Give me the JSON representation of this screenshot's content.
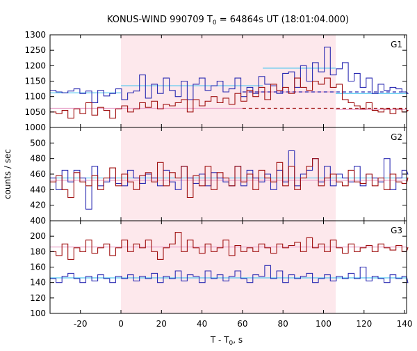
{
  "figure": {
    "title_main": "KONUS-WIND 990709 T",
    "title_sub": "0",
    "title_rest": " = 64864s UT (18:01:04.000)",
    "ylabel": "counts / sec",
    "xlabel_main": "T - T",
    "xlabel_sub": "0",
    "xlabel_rest": ", s"
  },
  "colors": {
    "blue": "#2b2bb2",
    "red": "#a01010",
    "light_blue": "#55c7f0",
    "pink": "#e8a0c8",
    "shade": "#fde8ec"
  },
  "chart_data": {
    "type": "line",
    "xlim": [
      -35,
      141
    ],
    "shaded_interval": [
      0,
      106
    ],
    "x_ticks": [
      -20,
      0,
      20,
      40,
      60,
      80,
      100,
      120,
      140
    ],
    "bin_width": 2.944,
    "panels": [
      {
        "label": "G1",
        "ylim": [
          1000,
          1300
        ],
        "y_ticks": [
          1000,
          1050,
          1100,
          1150,
          1200,
          1250,
          1300
        ],
        "series": [
          {
            "color": "blue",
            "values": [
              1120,
              1115,
              1112,
              1118,
              1125,
              1110,
              1118,
              1080,
              1120,
              1102,
              1110,
              1125,
              1090,
              1112,
              1118,
              1170,
              1095,
              1140,
              1110,
              1160,
              1120,
              1100,
              1150,
              1090,
              1140,
              1160,
              1120,
              1135,
              1150,
              1115,
              1125,
              1160,
              1100,
              1130,
              1110,
              1165,
              1140,
              1135,
              1110,
              1175,
              1180,
              1130,
              1200,
              1150,
              1210,
              1180,
              1260,
              1170,
              1190,
              1210,
              1150,
              1175,
              1130,
              1160,
              1110,
              1140,
              1120,
              1130,
              1125,
              1115,
              1110
            ]
          },
          {
            "color": "red",
            "values": [
              1050,
              1045,
              1055,
              1030,
              1060,
              1045,
              1080,
              1040,
              1065,
              1055,
              1030,
              1060,
              1070,
              1050,
              1060,
              1080,
              1065,
              1085,
              1060,
              1075,
              1070,
              1080,
              1090,
              1050,
              1090,
              1070,
              1085,
              1100,
              1080,
              1095,
              1075,
              1110,
              1085,
              1120,
              1100,
              1130,
              1090,
              1140,
              1120,
              1130,
              1110,
              1160,
              1130,
              1120,
              1150,
              1140,
              1160,
              1130,
              1140,
              1090,
              1080,
              1070,
              1060,
              1080,
              1055,
              1050,
              1060,
              1045,
              1060,
              1050,
              1055
            ]
          }
        ],
        "background": [
          {
            "color": "light_blue",
            "segments": [
              [
                -35,
                0,
                1112
              ],
              [
                0,
                70,
                1135
              ],
              [
                70,
                106,
                1192
              ],
              [
                106,
                141,
                1110
              ]
            ]
          },
          {
            "color": "pink",
            "segments": [
              [
                -35,
                0,
                1062
              ],
              [
                0,
                60,
                1062
              ],
              [
                60,
                106,
                1115
              ],
              [
                106,
                141,
                1058
              ]
            ]
          }
        ],
        "dashed": [
          {
            "color": "blue",
            "from": 60,
            "to": 141,
            "value": 1115
          },
          {
            "color": "red",
            "from": 60,
            "to": 141,
            "value": 1062
          }
        ]
      },
      {
        "label": "G2",
        "ylim": [
          400,
          520
        ],
        "y_ticks": [
          400,
          420,
          440,
          460,
          480,
          500
        ],
        "series": [
          {
            "color": "blue",
            "values": [
              455,
              440,
              465,
              450,
              465,
              455,
              415,
              470,
              445,
              450,
              455,
              448,
              445,
              465,
              455,
              448,
              460,
              455,
              445,
              465,
              450,
              440,
              470,
              455,
              448,
              460,
              445,
              462,
              455,
              450,
              445,
              470,
              445,
              465,
              455,
              450,
              460,
              440,
              465,
              450,
              490,
              445,
              460,
              465,
              480,
              450,
              470,
              445,
              460,
              455,
              450,
              470,
              445,
              460,
              455,
              450,
              480,
              440,
              455,
              465,
              460
            ]
          },
          {
            "color": "red",
            "values": [
              450,
              458,
              440,
              430,
              462,
              450,
              445,
              458,
              440,
              455,
              468,
              445,
              460,
              450,
              440,
              458,
              462,
              450,
              475,
              445,
              462,
              455,
              470,
              430,
              458,
              445,
              470,
              440,
              462,
              455,
              445,
              470,
              450,
              460,
              440,
              465,
              455,
              450,
              475,
              445,
              470,
              440,
              455,
              470,
              480,
              445,
              455,
              460,
              450,
              445,
              465,
              450,
              448,
              460,
              445,
              455,
              440,
              460,
              450,
              448,
              455
            ]
          }
        ],
        "background": [
          {
            "color": "light_blue",
            "segments": [
              [
                -35,
                141,
                455
              ]
            ]
          },
          {
            "color": "pink",
            "segments": [
              [
                -35,
                141,
                452
              ]
            ]
          }
        ],
        "dashed": []
      },
      {
        "label": "G3",
        "ylim": [
          100,
          220
        ],
        "y_ticks": [
          100,
          120,
          140,
          160,
          180,
          200
        ],
        "series": [
          {
            "color": "blue",
            "values": [
              145,
              140,
              148,
              152,
              145,
              140,
              148,
              142,
              150,
              145,
              140,
              148,
              145,
              150,
              142,
              148,
              145,
              152,
              140,
              148,
              145,
              155,
              142,
              150,
              148,
              140,
              155,
              145,
              150,
              142,
              148,
              155,
              145,
              140,
              150,
              148,
              162,
              145,
              155,
              140,
              150,
              145,
              148,
              152,
              140,
              145,
              150,
              142,
              148,
              145,
              152,
              145,
              160,
              142,
              148,
              145,
              140,
              150,
              145,
              148,
              140
            ]
          },
          {
            "color": "red",
            "values": [
              180,
              175,
              190,
              170,
              185,
              180,
              195,
              178,
              185,
              190,
              175,
              185,
              195,
              180,
              190,
              185,
              195,
              180,
              170,
              185,
              190,
              205,
              180,
              195,
              185,
              178,
              190,
              180,
              185,
              195,
              175,
              188,
              180,
              185,
              180,
              190,
              185,
              178,
              190,
              185,
              188,
              192,
              180,
              198,
              185,
              190,
              180,
              195,
              185,
              178,
              190,
              180,
              185,
              188,
              180,
              190,
              185,
              182,
              188,
              180,
              185
            ]
          }
        ],
        "background": [
          {
            "color": "light_blue",
            "segments": [
              [
                -35,
                141,
                146
              ]
            ]
          },
          {
            "color": "pink",
            "segments": [
              [
                -35,
                141,
                186
              ]
            ]
          }
        ],
        "dashed": []
      }
    ]
  }
}
